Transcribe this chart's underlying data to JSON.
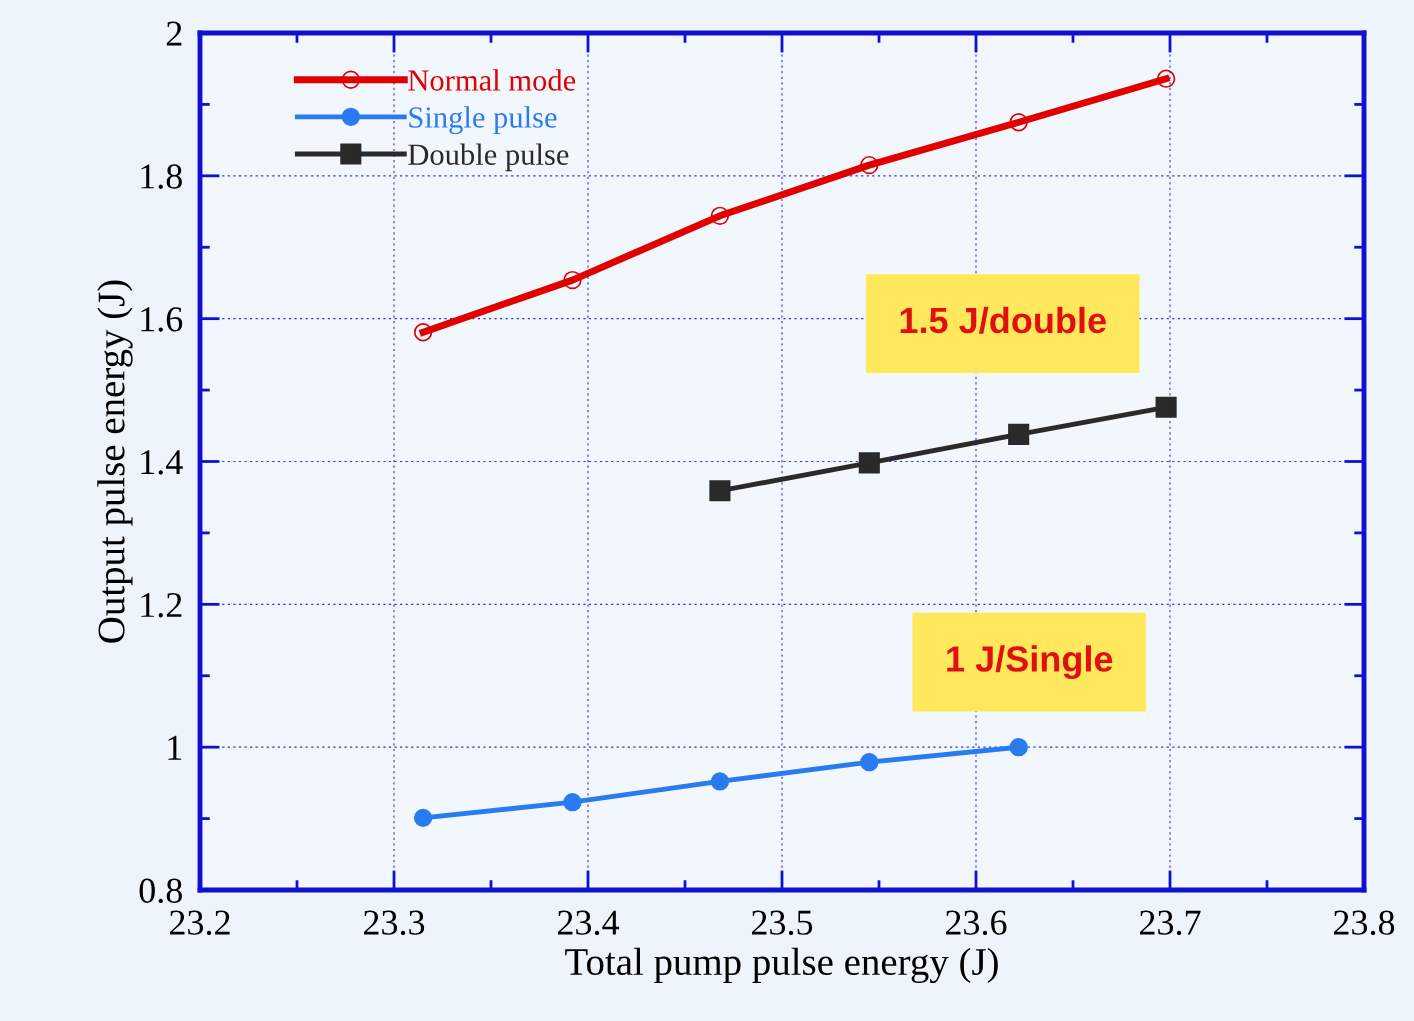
{
  "chart_data": {
    "type": "line",
    "xlabel": "Total pump pulse energy (J)",
    "ylabel": "Output pulse energy (J)",
    "xlim": [
      23.2,
      23.8
    ],
    "xticks": [
      23.2,
      23.3,
      23.4,
      23.5,
      23.6,
      23.7,
      23.8
    ],
    "ylim": [
      0.8,
      2
    ],
    "yticks": [
      0.8,
      1,
      1.2,
      1.4,
      1.6,
      1.8,
      2
    ],
    "grid": true,
    "legend": "top left",
    "series": [
      {
        "name": "Normal mode",
        "color": "#e00000",
        "marker": "circle",
        "x": [
          23.315,
          23.392,
          23.468,
          23.545,
          23.622,
          23.698
        ],
        "values": [
          1.581,
          1.654,
          1.744,
          1.815,
          1.875,
          1.936
        ]
      },
      {
        "name": "Single pulse",
        "color": "#2a7bf0",
        "marker": "circle",
        "x": [
          23.315,
          23.392,
          23.468,
          23.545,
          23.622
        ],
        "values": [
          0.901,
          0.923,
          0.952,
          0.979,
          1.0
        ]
      },
      {
        "name": "Double pulse",
        "color": "#2a2a2a",
        "marker": "square",
        "x": [
          23.468,
          23.545,
          23.622,
          23.698
        ],
        "values": [
          1.359,
          1.398,
          1.438,
          1.476
        ]
      }
    ],
    "annotations": [
      "1.5 J/double",
      "1 J/Single"
    ]
  }
}
